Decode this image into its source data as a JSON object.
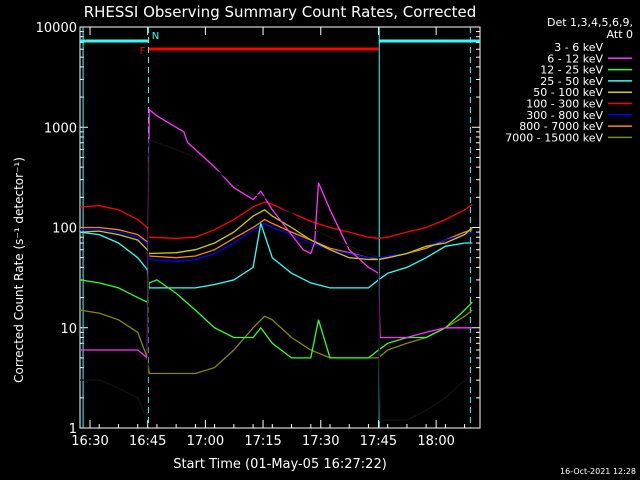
{
  "chart_data": {
    "type": "line",
    "title": "RHESSI Observing Summary Count Rates, Corrected",
    "xlabel": "Start Time (01-May-05 16:27:22)",
    "ylabel": "Corrected Count Rate (s⁻¹ detector⁻¹)",
    "ylog": true,
    "ylim": [
      1,
      10000
    ],
    "yticks": [
      {
        "v": 1,
        "label": "1"
      },
      {
        "v": 10,
        "label": "10"
      },
      {
        "v": 100,
        "label": "100"
      },
      {
        "v": 1000,
        "label": "1000"
      },
      {
        "v": 10000,
        "label": "10000"
      }
    ],
    "xlim_minutes": [
      0,
      104
    ],
    "xticks": [
      {
        "m": 2.6,
        "label": "16:30"
      },
      {
        "m": 17.6,
        "label": "16:45"
      },
      {
        "m": 32.6,
        "label": "17:00"
      },
      {
        "m": 47.6,
        "label": "17:15"
      },
      {
        "m": 62.6,
        "label": "17:30"
      },
      {
        "m": 77.6,
        "label": "17:45"
      },
      {
        "m": 92.6,
        "label": "18:00"
      }
    ],
    "legend_header": [
      "Det 1,3,4,5,6,9,",
      "Att 0"
    ],
    "timestamp": "16-Oct-2021 12:28",
    "flags": {
      "F": "F",
      "N": "N"
    },
    "night_bars": [
      [
        0,
        17.8
      ],
      [
        77.8,
        104
      ]
    ],
    "flare_bar": [
      17.8,
      77.6
    ],
    "markers_dashed": [
      17.8,
      101.5
    ],
    "markers_solid": [
      0.8,
      77.8
    ],
    "series": [
      {
        "name": "3 - 6 keV",
        "color": "#000000",
        "x": [
          0,
          5,
          10,
          15,
          17.5,
          18,
          20,
          25,
          30,
          35,
          40,
          45,
          47,
          50,
          55,
          60,
          62,
          65,
          70,
          75,
          77.6,
          78,
          85,
          90,
          95,
          100,
          102
        ],
        "y": [
          3,
          3,
          2.5,
          2,
          1.2,
          750,
          700,
          600,
          500,
          380,
          280,
          210,
          210,
          180,
          140,
          100,
          90,
          80,
          65,
          55,
          50,
          1.2,
          1.2,
          1.5,
          2,
          3,
          3.5
        ]
      },
      {
        "name": "6 - 12 keV",
        "color": "#ff33ff",
        "x": [
          0,
          5,
          10,
          15,
          17.5,
          18,
          20,
          25,
          27,
          28,
          30,
          35,
          40,
          45,
          47,
          50,
          55,
          58,
          60,
          61,
          62,
          65,
          70,
          75,
          77.6,
          78,
          85,
          90,
          95,
          100,
          102
        ],
        "y": [
          6,
          6,
          6,
          6,
          5,
          1500,
          1300,
          1000,
          900,
          700,
          600,
          400,
          250,
          190,
          230,
          150,
          85,
          60,
          55,
          70,
          280,
          150,
          60,
          40,
          35,
          8,
          8,
          9,
          10,
          10,
          10
        ]
      },
      {
        "name": "12 - 25 keV",
        "color": "#33ff33",
        "x": [
          0,
          5,
          10,
          15,
          17.5,
          18,
          20,
          25,
          30,
          35,
          40,
          45,
          47,
          50,
          55,
          60,
          62,
          65,
          70,
          75,
          77.6,
          80,
          85,
          90,
          95,
          100,
          102
        ],
        "y": [
          30,
          28,
          25,
          20,
          18,
          28,
          30,
          22,
          15,
          10,
          8,
          8,
          10,
          7,
          5,
          5,
          12,
          5,
          5,
          5,
          6,
          7,
          8,
          8,
          10,
          15,
          18
        ]
      },
      {
        "name": "25 - 50 keV",
        "color": "#33ffff",
        "x": [
          0,
          5,
          10,
          15,
          17.5,
          18,
          25,
          30,
          35,
          40,
          45,
          47,
          50,
          55,
          60,
          65,
          70,
          75,
          77.6,
          80,
          85,
          90,
          95,
          100,
          102
        ],
        "y": [
          90,
          85,
          70,
          50,
          38,
          25,
          25,
          25,
          27,
          30,
          40,
          110,
          50,
          35,
          28,
          25,
          25,
          25,
          30,
          35,
          40,
          50,
          65,
          70,
          70
        ]
      },
      {
        "name": "50 - 100 keV",
        "color": "#cccc00",
        "x": [
          0,
          5,
          10,
          15,
          17.5,
          18,
          25,
          30,
          35,
          40,
          45,
          48,
          50,
          55,
          60,
          65,
          70,
          75,
          77.6,
          80,
          85,
          90,
          95,
          100,
          102
        ],
        "y": [
          90,
          92,
          85,
          75,
          60,
          55,
          56,
          60,
          70,
          90,
          130,
          150,
          130,
          100,
          75,
          60,
          50,
          48,
          48,
          50,
          55,
          65,
          70,
          85,
          100
        ]
      },
      {
        "name": "100 - 300 keV",
        "color": "#ff0000",
        "x": [
          0,
          5,
          10,
          15,
          17.5,
          18,
          25,
          30,
          35,
          40,
          45,
          48,
          50,
          55,
          60,
          65,
          70,
          75,
          77.6,
          80,
          85,
          90,
          95,
          100,
          102
        ],
        "y": [
          160,
          165,
          150,
          120,
          100,
          80,
          78,
          80,
          95,
          120,
          160,
          180,
          170,
          140,
          115,
          100,
          90,
          80,
          78,
          80,
          90,
          100,
          120,
          150,
          170
        ]
      },
      {
        "name": "300 - 800 keV",
        "color": "#0000ff",
        "x": [
          0,
          5,
          10,
          15,
          17.5,
          18,
          25,
          30,
          35,
          40,
          45,
          48,
          50,
          55,
          60,
          65,
          70,
          75,
          77.6,
          80,
          85,
          90,
          95,
          100,
          102
        ],
        "y": [
          95,
          95,
          90,
          80,
          70,
          48,
          46,
          48,
          55,
          70,
          95,
          110,
          100,
          85,
          70,
          60,
          55,
          50,
          50,
          52,
          55,
          65,
          75,
          85,
          90
        ]
      },
      {
        "name": "800 - 7000 keV",
        "color": "#ff8800",
        "x": [
          0,
          5,
          10,
          15,
          17.5,
          18,
          25,
          30,
          35,
          40,
          45,
          48,
          50,
          55,
          60,
          65,
          70,
          75,
          77.6,
          80,
          85,
          90,
          95,
          100,
          102
        ],
        "y": [
          100,
          100,
          95,
          85,
          72,
          52,
          50,
          52,
          60,
          78,
          100,
          120,
          110,
          90,
          75,
          62,
          56,
          50,
          48,
          50,
          55,
          62,
          75,
          90,
          95
        ]
      },
      {
        "name": "7000 - 15000 keV",
        "color": "#888800",
        "x": [
          0,
          5,
          10,
          15,
          17.5,
          18,
          25,
          30,
          35,
          40,
          45,
          48,
          50,
          55,
          60,
          65,
          70,
          75,
          77.6,
          80,
          85,
          90,
          95,
          100,
          102
        ],
        "y": [
          15,
          14,
          12,
          9,
          5,
          3.5,
          3.5,
          3.5,
          4,
          6,
          10,
          13,
          12,
          8,
          6,
          5,
          5,
          5,
          5,
          6,
          7,
          8,
          10,
          13,
          15
        ]
      }
    ]
  }
}
